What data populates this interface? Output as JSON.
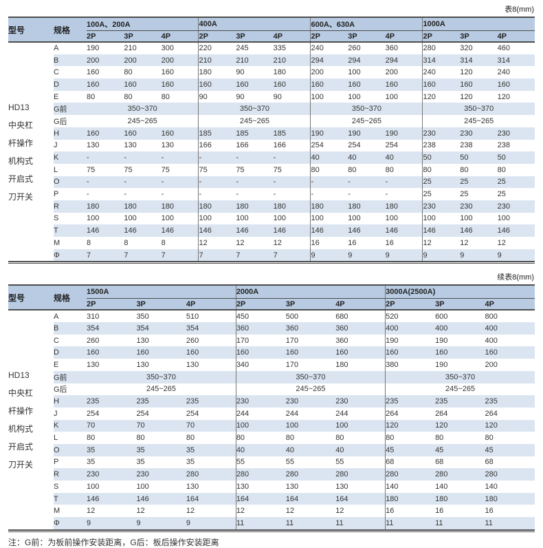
{
  "page": {
    "note": "注：G前：为板前操作安装距离，G后：板后操作安装距离"
  },
  "tables": [
    {
      "caption": "表8(mm)",
      "model_header": "型号",
      "spec_header": "规格",
      "model_lines": [
        "HD13",
        "中央杠",
        "杆操作",
        "机构式",
        "开启式",
        "刀开关"
      ],
      "groups": [
        {
          "label": "100A、200A",
          "subcols": [
            "2P",
            "3P",
            "4P"
          ]
        },
        {
          "label": "400A",
          "subcols": [
            "2P",
            "3P",
            "4P"
          ]
        },
        {
          "label": "600A、630A",
          "subcols": [
            "2P",
            "3P",
            "4P"
          ]
        },
        {
          "label": "1000A",
          "subcols": [
            "2P",
            "3P",
            "4P"
          ]
        }
      ],
      "rows": [
        {
          "spec": "A",
          "merged": false,
          "values": [
            [
              "190",
              "210",
              "300"
            ],
            [
              "220",
              "245",
              "335"
            ],
            [
              "240",
              "260",
              "360"
            ],
            [
              "280",
              "320",
              "460"
            ]
          ]
        },
        {
          "spec": "B",
          "merged": false,
          "values": [
            [
              "200",
              "200",
              "200"
            ],
            [
              "210",
              "210",
              "210"
            ],
            [
              "294",
              "294",
              "294"
            ],
            [
              "314",
              "314",
              "314"
            ]
          ]
        },
        {
          "spec": "C",
          "merged": false,
          "values": [
            [
              "160",
              "80",
              "160"
            ],
            [
              "180",
              "90",
              "180"
            ],
            [
              "200",
              "100",
              "200"
            ],
            [
              "240",
              "120",
              "240"
            ]
          ]
        },
        {
          "spec": "D",
          "merged": false,
          "values": [
            [
              "160",
              "160",
              "160"
            ],
            [
              "160",
              "160",
              "160"
            ],
            [
              "160",
              "160",
              "160"
            ],
            [
              "160",
              "160",
              "160"
            ]
          ]
        },
        {
          "spec": "E",
          "merged": false,
          "values": [
            [
              "80",
              "80",
              "80"
            ],
            [
              "90",
              "90",
              "90"
            ],
            [
              "100",
              "100",
              "100"
            ],
            [
              "120",
              "120",
              "120"
            ]
          ]
        },
        {
          "spec": "G前",
          "merged": true,
          "values": [
            "350~370",
            "350~370",
            "350~370",
            "350~370"
          ]
        },
        {
          "spec": "G后",
          "merged": true,
          "values": [
            "245~265",
            "245~265",
            "245~265",
            "245~265"
          ]
        },
        {
          "spec": "H",
          "merged": false,
          "values": [
            [
              "160",
              "160",
              "160"
            ],
            [
              "185",
              "185",
              "185"
            ],
            [
              "190",
              "190",
              "190"
            ],
            [
              "230",
              "230",
              "230"
            ]
          ]
        },
        {
          "spec": "J",
          "merged": false,
          "values": [
            [
              "130",
              "130",
              "130"
            ],
            [
              "166",
              "166",
              "166"
            ],
            [
              "254",
              "254",
              "254"
            ],
            [
              "238",
              "238",
              "238"
            ]
          ]
        },
        {
          "spec": "K",
          "merged": false,
          "values": [
            [
              "-",
              "-",
              "-"
            ],
            [
              "-",
              "-",
              "-"
            ],
            [
              "40",
              "40",
              "40"
            ],
            [
              "50",
              "50",
              "50"
            ]
          ]
        },
        {
          "spec": "L",
          "merged": false,
          "values": [
            [
              "75",
              "75",
              "75"
            ],
            [
              "75",
              "75",
              "75"
            ],
            [
              "80",
              "80",
              "80"
            ],
            [
              "80",
              "80",
              "80"
            ]
          ]
        },
        {
          "spec": "O",
          "merged": false,
          "values": [
            [
              "-",
              "-",
              "-"
            ],
            [
              "-",
              "-",
              "-"
            ],
            [
              "-",
              "-",
              "-"
            ],
            [
              "25",
              "25",
              "25"
            ]
          ]
        },
        {
          "spec": "P",
          "merged": false,
          "values": [
            [
              "-",
              "-",
              "-"
            ],
            [
              "-",
              "-",
              "-"
            ],
            [
              "-",
              "-",
              "-"
            ],
            [
              "25",
              "25",
              "25"
            ]
          ]
        },
        {
          "spec": "R",
          "merged": false,
          "values": [
            [
              "180",
              "180",
              "180"
            ],
            [
              "180",
              "180",
              "180"
            ],
            [
              "180",
              "180",
              "180"
            ],
            [
              "230",
              "230",
              "230"
            ]
          ]
        },
        {
          "spec": "S",
          "merged": false,
          "values": [
            [
              "100",
              "100",
              "100"
            ],
            [
              "100",
              "100",
              "100"
            ],
            [
              "100",
              "100",
              "100"
            ],
            [
              "100",
              "100",
              "100"
            ]
          ]
        },
        {
          "spec": "T",
          "merged": false,
          "values": [
            [
              "146",
              "146",
              "146"
            ],
            [
              "146",
              "146",
              "146"
            ],
            [
              "146",
              "146",
              "146"
            ],
            [
              "146",
              "146",
              "146"
            ]
          ]
        },
        {
          "spec": "M",
          "merged": false,
          "values": [
            [
              "8",
              "8",
              "8"
            ],
            [
              "12",
              "12",
              "12"
            ],
            [
              "16",
              "16",
              "16"
            ],
            [
              "12",
              "12",
              "12"
            ]
          ]
        },
        {
          "spec": "Φ",
          "merged": false,
          "values": [
            [
              "7",
              "7",
              "7"
            ],
            [
              "7",
              "7",
              "7"
            ],
            [
              "9",
              "9",
              "9"
            ],
            [
              "9",
              "9",
              "9"
            ]
          ]
        }
      ]
    },
    {
      "caption": "续表8(mm)",
      "model_header": "型号",
      "spec_header": "规格",
      "model_lines": [
        "HD13",
        "中央杠",
        "杆操作",
        "机构式",
        "开启式",
        "刀开关"
      ],
      "groups": [
        {
          "label": "1500A",
          "subcols": [
            "2P",
            "3P",
            "4P"
          ]
        },
        {
          "label": "2000A",
          "subcols": [
            "2P",
            "3P",
            "4P"
          ]
        },
        {
          "label": "3000A(2500A)",
          "subcols": [
            "2P",
            "3P",
            "4P"
          ]
        }
      ],
      "rows": [
        {
          "spec": "A",
          "merged": false,
          "values": [
            [
              "310",
              "350",
              "510"
            ],
            [
              "450",
              "500",
              "680"
            ],
            [
              "520",
              "600",
              "800"
            ]
          ]
        },
        {
          "spec": "B",
          "merged": false,
          "values": [
            [
              "354",
              "354",
              "354"
            ],
            [
              "360",
              "360",
              "360"
            ],
            [
              "400",
              "400",
              "400"
            ]
          ]
        },
        {
          "spec": "C",
          "merged": false,
          "values": [
            [
              "260",
              "130",
              "260"
            ],
            [
              "170",
              "170",
              "360"
            ],
            [
              "190",
              "190",
              "400"
            ]
          ]
        },
        {
          "spec": "D",
          "merged": false,
          "values": [
            [
              "160",
              "160",
              "160"
            ],
            [
              "160",
              "160",
              "160"
            ],
            [
              "160",
              "160",
              "160"
            ]
          ]
        },
        {
          "spec": "E",
          "merged": false,
          "values": [
            [
              "130",
              "130",
              "130"
            ],
            [
              "340",
              "170",
              "180"
            ],
            [
              "380",
              "190",
              "200"
            ]
          ]
        },
        {
          "spec": "G前",
          "merged": true,
          "values": [
            "350~370",
            "350~370",
            "350~370"
          ]
        },
        {
          "spec": "G后",
          "merged": true,
          "values": [
            "245~265",
            "245~265",
            "245~265"
          ]
        },
        {
          "spec": "H",
          "merged": false,
          "values": [
            [
              "235",
              "235",
              "235"
            ],
            [
              "230",
              "230",
              "230"
            ],
            [
              "235",
              "235",
              "235"
            ]
          ]
        },
        {
          "spec": "J",
          "merged": false,
          "values": [
            [
              "254",
              "254",
              "254"
            ],
            [
              "244",
              "244",
              "244"
            ],
            [
              "264",
              "264",
              "264"
            ]
          ]
        },
        {
          "spec": "K",
          "merged": false,
          "values": [
            [
              "70",
              "70",
              "70"
            ],
            [
              "100",
              "100",
              "100"
            ],
            [
              "120",
              "120",
              "120"
            ]
          ]
        },
        {
          "spec": "L",
          "merged": false,
          "values": [
            [
              "80",
              "80",
              "80"
            ],
            [
              "80",
              "80",
              "80"
            ],
            [
              "80",
              "80",
              "80"
            ]
          ]
        },
        {
          "spec": "O",
          "merged": false,
          "values": [
            [
              "35",
              "35",
              "35"
            ],
            [
              "40",
              "40",
              "40"
            ],
            [
              "45",
              "45",
              "45"
            ]
          ]
        },
        {
          "spec": "P",
          "merged": false,
          "values": [
            [
              "35",
              "35",
              "35"
            ],
            [
              "55",
              "55",
              "55"
            ],
            [
              "68",
              "68",
              "68"
            ]
          ]
        },
        {
          "spec": "R",
          "merged": false,
          "values": [
            [
              "230",
              "230",
              "280"
            ],
            [
              "280",
              "280",
              "280"
            ],
            [
              "280",
              "280",
              "280"
            ]
          ]
        },
        {
          "spec": "S",
          "merged": false,
          "values": [
            [
              "100",
              "100",
              "130"
            ],
            [
              "130",
              "130",
              "130"
            ],
            [
              "140",
              "140",
              "140"
            ]
          ]
        },
        {
          "spec": "T",
          "merged": false,
          "values": [
            [
              "146",
              "146",
              "164"
            ],
            [
              "164",
              "164",
              "164"
            ],
            [
              "180",
              "180",
              "180"
            ]
          ]
        },
        {
          "spec": "M",
          "merged": false,
          "values": [
            [
              "12",
              "12",
              "12"
            ],
            [
              "12",
              "12",
              "12"
            ],
            [
              "16",
              "16",
              "16"
            ]
          ]
        },
        {
          "spec": "Φ",
          "merged": false,
          "values": [
            [
              "9",
              "9",
              "9"
            ],
            [
              "11",
              "11",
              "11"
            ],
            [
              "11",
              "11",
              "11"
            ]
          ]
        }
      ]
    }
  ],
  "colors": {
    "header_bg": "#b8cbe2",
    "stripe_bg": "#dbe5f1",
    "border_dark": "#4d4d4d",
    "divider": "#757575",
    "text": "#333333"
  }
}
